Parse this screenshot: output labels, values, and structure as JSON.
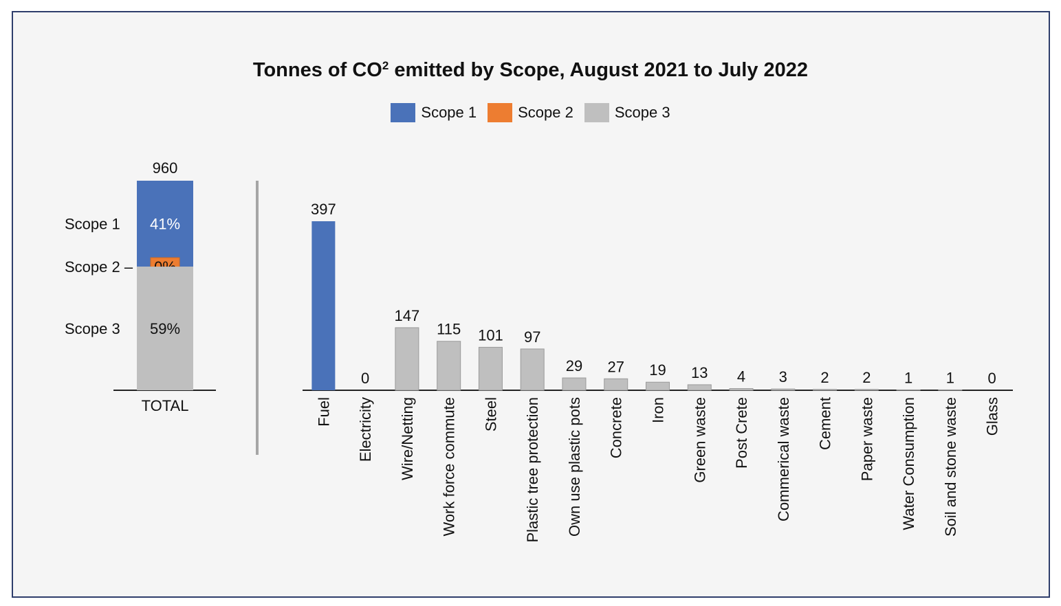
{
  "chart_data": [
    {
      "type": "bar",
      "stacked": true,
      "title": "Tonnes of CO² emitted by Scope, August 2021 to July 2022",
      "legend": {
        "position": "top",
        "entries": [
          {
            "name": "Scope 1",
            "color": "#4a72b9"
          },
          {
            "name": "Scope 2",
            "color": "#ed7d31"
          },
          {
            "name": "Scope 3",
            "color": "#bfbfbf"
          }
        ]
      },
      "categories": [
        "TOTAL"
      ],
      "total_label": "960",
      "total": 960,
      "series": [
        {
          "name": "Scope 1",
          "label": "41%",
          "share": 0.41,
          "color": "#4a72b9"
        },
        {
          "name": "Scope 2",
          "label": "0%",
          "share": 0.0,
          "color": "#ed7d31"
        },
        {
          "name": "Scope 3",
          "label": "59%",
          "share": 0.59,
          "color": "#bfbfbf"
        }
      ],
      "side_labels": [
        "Scope 1",
        "Scope 2 –",
        "Scope 3"
      ]
    },
    {
      "type": "bar",
      "categories": [
        "Fuel",
        "Electricity",
        "Wire/Netting",
        "Work force commute",
        "Steel",
        "Plastic tree protection",
        "Own use plastic pots",
        "Concrete",
        "Iron",
        "Green waste",
        "Post Crete",
        "Commerical waste",
        "Cement",
        "Paper waste",
        "Water Consumption",
        "Soil and stone waste",
        "Glass"
      ],
      "values": [
        397,
        0,
        147,
        115,
        101,
        97,
        29,
        27,
        19,
        13,
        4,
        3,
        2,
        2,
        1,
        1,
        0
      ],
      "scopes": [
        "Scope 1",
        "Scope 2",
        "Scope 3",
        "Scope 3",
        "Scope 3",
        "Scope 3",
        "Scope 3",
        "Scope 3",
        "Scope 3",
        "Scope 3",
        "Scope 3",
        "Scope 3",
        "Scope 3",
        "Scope 3",
        "Scope 3",
        "Scope 3",
        "Scope 3"
      ],
      "ylim": [
        0,
        397
      ],
      "grid": false,
      "data_labels": true
    }
  ]
}
